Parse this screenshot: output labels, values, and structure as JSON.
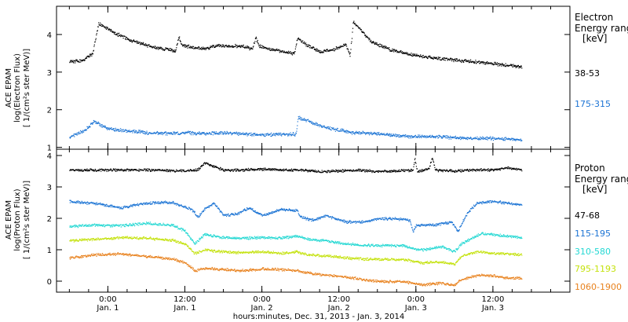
{
  "chart_data": [
    {
      "type": "scatter",
      "panel": "electron",
      "ylabel_lines": [
        "ACE EPAM",
        "log(Electron Flux)",
        "[ 1/(cm²s ster MeV)]"
      ],
      "ylim": [
        0.95,
        4.75
      ],
      "yticks": [
        1,
        2,
        3,
        4
      ],
      "legend_title_lines": [
        "Electron",
        "Energy range",
        "[keV]"
      ],
      "series": [
        {
          "name": "38-53",
          "color": "#000000",
          "points": [
            [
              -6,
              3.28
            ],
            [
              -4,
              3.32
            ],
            [
              -2.4,
              3.5
            ],
            [
              -1.5,
              4.3
            ],
            [
              1,
              4.05
            ],
            [
              4,
              3.82
            ],
            [
              7,
              3.68
            ],
            [
              9,
              3.62
            ],
            [
              10.5,
              3.58
            ],
            [
              11,
              3.95
            ],
            [
              11.5,
              3.72
            ],
            [
              13,
              3.68
            ],
            [
              15,
              3.62
            ],
            [
              17,
              3.72
            ],
            [
              19,
              3.7
            ],
            [
              21,
              3.7
            ],
            [
              22.5,
              3.62
            ],
            [
              23,
              3.95
            ],
            [
              23.5,
              3.7
            ],
            [
              26,
              3.6
            ],
            [
              29,
              3.5
            ],
            [
              29.5,
              3.9
            ],
            [
              31,
              3.72
            ],
            [
              33,
              3.55
            ],
            [
              35,
              3.6
            ],
            [
              37,
              3.75
            ],
            [
              37.7,
              3.45
            ],
            [
              38.2,
              4.35
            ],
            [
              41,
              3.82
            ],
            [
              44,
              3.6
            ],
            [
              47,
              3.48
            ],
            [
              50,
              3.4
            ],
            [
              53,
              3.35
            ],
            [
              56,
              3.3
            ],
            [
              59,
              3.25
            ],
            [
              62,
              3.2
            ],
            [
              64.5,
              3.14
            ]
          ]
        },
        {
          "name": "175-315",
          "color": "#1c74d4",
          "points": [
            [
              -6,
              1.28
            ],
            [
              -3.5,
              1.48
            ],
            [
              -2.2,
              1.7
            ],
            [
              0,
              1.5
            ],
            [
              3,
              1.45
            ],
            [
              6,
              1.4
            ],
            [
              9,
              1.38
            ],
            [
              12,
              1.4
            ],
            [
              15,
              1.38
            ],
            [
              18,
              1.4
            ],
            [
              21,
              1.36
            ],
            [
              24,
              1.35
            ],
            [
              27,
              1.36
            ],
            [
              29.3,
              1.36
            ],
            [
              29.6,
              1.8
            ],
            [
              31,
              1.72
            ],
            [
              33,
              1.6
            ],
            [
              35,
              1.5
            ],
            [
              38,
              1.4
            ],
            [
              41,
              1.38
            ],
            [
              44,
              1.34
            ],
            [
              47,
              1.3
            ],
            [
              50,
              1.3
            ],
            [
              53,
              1.28
            ],
            [
              56,
              1.25
            ],
            [
              59,
              1.25
            ],
            [
              62,
              1.24
            ],
            [
              64.5,
              1.2
            ]
          ]
        }
      ]
    },
    {
      "type": "scatter",
      "panel": "proton",
      "ylabel_lines": [
        "ACE EPAM",
        "log(Proton Flux)",
        "[ 1/(cm²s ster MeV)]"
      ],
      "ylim": [
        -0.35,
        4.2
      ],
      "yticks": [
        0,
        1,
        2,
        3,
        4
      ],
      "legend_title_lines": [
        "Proton",
        "Energy range",
        "[keV]"
      ],
      "xlabel": "hours:minutes, Dec. 31, 2013 - Jan.  3, 2014",
      "xlim": [
        -8,
        72
      ],
      "xticks": [
        {
          "x": 0,
          "time": "0:00",
          "date": "Jan. 1"
        },
        {
          "x": 12,
          "time": "12:00",
          "date": "Jan. 1"
        },
        {
          "x": 24,
          "time": "0:00",
          "date": "Jan. 2"
        },
        {
          "x": 36,
          "time": "12:00",
          "date": "Jan. 2"
        },
        {
          "x": 48,
          "time": "0:00",
          "date": "Jan. 3"
        },
        {
          "x": 60,
          "time": "12:00",
          "date": "Jan. 3"
        }
      ],
      "series": [
        {
          "name": "47-68",
          "color": "#000000",
          "points": [
            [
              -6,
              3.55
            ],
            [
              0,
              3.55
            ],
            [
              6,
              3.55
            ],
            [
              12,
              3.52
            ],
            [
              14,
              3.55
            ],
            [
              15,
              3.78
            ],
            [
              16,
              3.7
            ],
            [
              18,
              3.55
            ],
            [
              21,
              3.55
            ],
            [
              24,
              3.58
            ],
            [
              27,
              3.55
            ],
            [
              30,
              3.55
            ],
            [
              33,
              3.5
            ],
            [
              36,
              3.52
            ],
            [
              39,
              3.55
            ],
            [
              42,
              3.5
            ],
            [
              45,
              3.52
            ],
            [
              47.5,
              3.55
            ],
            [
              47.8,
              3.9
            ],
            [
              48.2,
              3.5
            ],
            [
              50,
              3.58
            ],
            [
              50.5,
              3.95
            ],
            [
              51,
              3.55
            ],
            [
              54,
              3.52
            ],
            [
              57,
              3.55
            ],
            [
              60,
              3.55
            ],
            [
              62,
              3.62
            ],
            [
              64.5,
              3.55
            ]
          ]
        },
        {
          "name": "115-195",
          "color": "#1c74d4",
          "points": [
            [
              -6,
              2.55
            ],
            [
              -2,
              2.48
            ],
            [
              2,
              2.35
            ],
            [
              6,
              2.5
            ],
            [
              10,
              2.52
            ],
            [
              13,
              2.3
            ],
            [
              14,
              2.05
            ],
            [
              15,
              2.3
            ],
            [
              16.5,
              2.5
            ],
            [
              18,
              2.1
            ],
            [
              20,
              2.15
            ],
            [
              22,
              2.35
            ],
            [
              24,
              2.1
            ],
            [
              27,
              2.3
            ],
            [
              29.5,
              2.25
            ],
            [
              30,
              2.05
            ],
            [
              32,
              1.95
            ],
            [
              34,
              2.1
            ],
            [
              37,
              1.9
            ],
            [
              40,
              1.9
            ],
            [
              42,
              2.0
            ],
            [
              45,
              2.0
            ],
            [
              47,
              1.95
            ],
            [
              47.5,
              1.6
            ],
            [
              48,
              1.8
            ],
            [
              51,
              1.8
            ],
            [
              53.5,
              1.9
            ],
            [
              54.5,
              1.6
            ],
            [
              56,
              2.2
            ],
            [
              57.5,
              2.5
            ],
            [
              60,
              2.55
            ],
            [
              62,
              2.5
            ],
            [
              64.5,
              2.45
            ]
          ]
        },
        {
          "name": "310-580",
          "color": "#23d8d3",
          "points": [
            [
              -6,
              1.75
            ],
            [
              -2,
              1.8
            ],
            [
              2,
              1.78
            ],
            [
              6,
              1.85
            ],
            [
              10,
              1.8
            ],
            [
              12,
              1.6
            ],
            [
              13.5,
              1.2
            ],
            [
              15,
              1.5
            ],
            [
              18,
              1.4
            ],
            [
              21,
              1.38
            ],
            [
              24,
              1.4
            ],
            [
              27,
              1.38
            ],
            [
              29.5,
              1.45
            ],
            [
              31,
              1.35
            ],
            [
              34,
              1.3
            ],
            [
              37,
              1.2
            ],
            [
              40,
              1.15
            ],
            [
              43,
              1.15
            ],
            [
              46,
              1.15
            ],
            [
              47.5,
              1.05
            ],
            [
              49,
              1.0
            ],
            [
              52,
              1.12
            ],
            [
              54,
              0.95
            ],
            [
              55,
              1.2
            ],
            [
              56.5,
              1.35
            ],
            [
              58,
              1.52
            ],
            [
              60,
              1.5
            ],
            [
              62,
              1.45
            ],
            [
              64.5,
              1.4
            ]
          ]
        },
        {
          "name": "795-1193",
          "color": "#c4e20c",
          "points": [
            [
              -6,
              1.3
            ],
            [
              -2,
              1.35
            ],
            [
              2,
              1.4
            ],
            [
              6,
              1.38
            ],
            [
              10,
              1.32
            ],
            [
              12,
              1.2
            ],
            [
              13.5,
              0.9
            ],
            [
              15,
              1.0
            ],
            [
              18,
              0.95
            ],
            [
              21,
              0.92
            ],
            [
              24,
              0.95
            ],
            [
              27,
              0.9
            ],
            [
              29.5,
              0.95
            ],
            [
              31,
              0.85
            ],
            [
              34,
              0.82
            ],
            [
              37,
              0.75
            ],
            [
              40,
              0.72
            ],
            [
              43,
              0.7
            ],
            [
              46,
              0.7
            ],
            [
              47.5,
              0.65
            ],
            [
              49,
              0.6
            ],
            [
              52,
              0.62
            ],
            [
              54,
              0.55
            ],
            [
              55,
              0.8
            ],
            [
              56.5,
              0.9
            ],
            [
              58,
              0.95
            ],
            [
              60,
              0.9
            ],
            [
              62,
              0.88
            ],
            [
              64.5,
              0.85
            ]
          ]
        },
        {
          "name": "1060-1900",
          "color": "#e8821e",
          "points": [
            [
              -6,
              0.75
            ],
            [
              -2,
              0.85
            ],
            [
              2,
              0.88
            ],
            [
              6,
              0.8
            ],
            [
              10,
              0.72
            ],
            [
              12,
              0.6
            ],
            [
              13.5,
              0.35
            ],
            [
              15,
              0.42
            ],
            [
              18,
              0.38
            ],
            [
              21,
              0.35
            ],
            [
              24,
              0.4
            ],
            [
              27,
              0.38
            ],
            [
              29.5,
              0.35
            ],
            [
              31,
              0.28
            ],
            [
              34,
              0.2
            ],
            [
              37,
              0.15
            ],
            [
              40,
              0.05
            ],
            [
              43,
              0.0
            ],
            [
              46,
              0.0
            ],
            [
              47.5,
              -0.05
            ],
            [
              49,
              -0.1
            ],
            [
              52,
              -0.05
            ],
            [
              54,
              -0.1
            ],
            [
              55,
              0.05
            ],
            [
              56.5,
              0.15
            ],
            [
              58,
              0.2
            ],
            [
              60,
              0.18
            ],
            [
              62,
              0.12
            ],
            [
              64.5,
              0.1
            ]
          ]
        }
      ]
    }
  ]
}
